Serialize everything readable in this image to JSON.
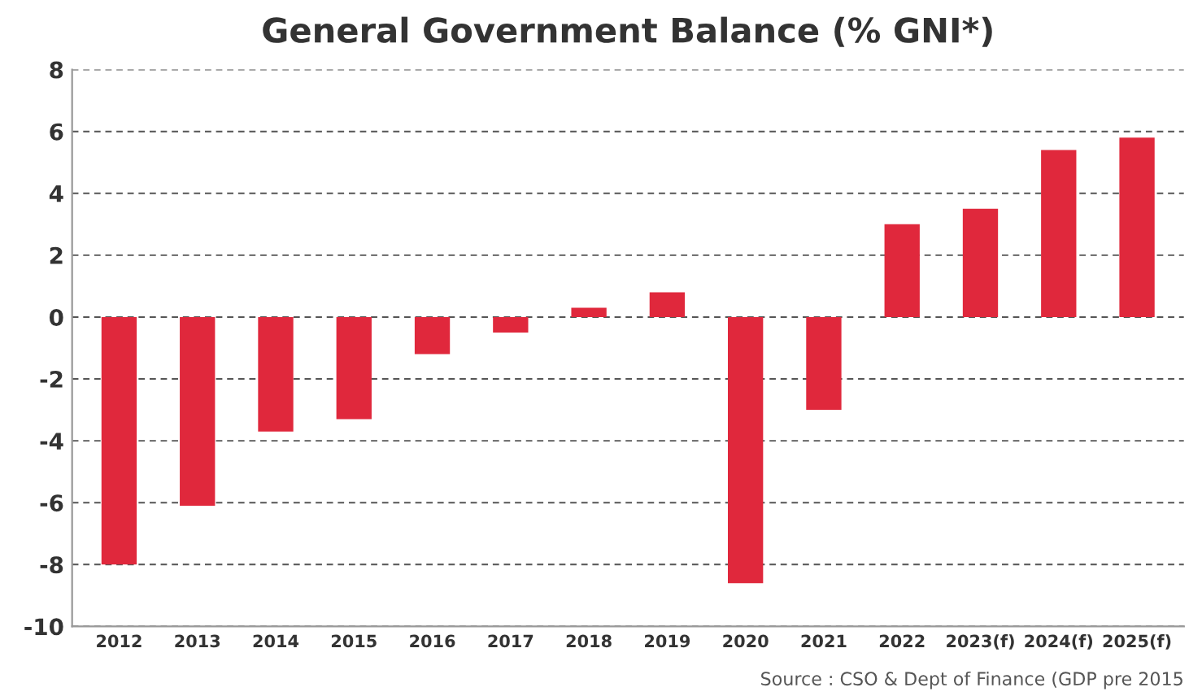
{
  "chart_data": {
    "type": "bar",
    "title": "General Government Balance (% GNI*)",
    "categories": [
      "2012",
      "2013",
      "2014",
      "2015",
      "2016",
      "2017",
      "2018",
      "2019",
      "2020",
      "2021",
      "2022",
      "2023(f)",
      "2024(f)",
      "2025(f)"
    ],
    "values": [
      -8.0,
      -6.1,
      -3.7,
      -3.3,
      -1.2,
      -0.5,
      0.3,
      0.8,
      -8.6,
      -3.0,
      3.0,
      3.5,
      5.4,
      5.8
    ],
    "color": "#e0283c",
    "ylim": [
      -10,
      8
    ],
    "yticks": [
      -10,
      -8,
      -6,
      -4,
      -2,
      0,
      2,
      4,
      6,
      8
    ],
    "grid": "y",
    "line_style": "dashed",
    "annotations": [
      "Source : CSO & Dept of Finance (GDP pre 2015"
    ]
  }
}
